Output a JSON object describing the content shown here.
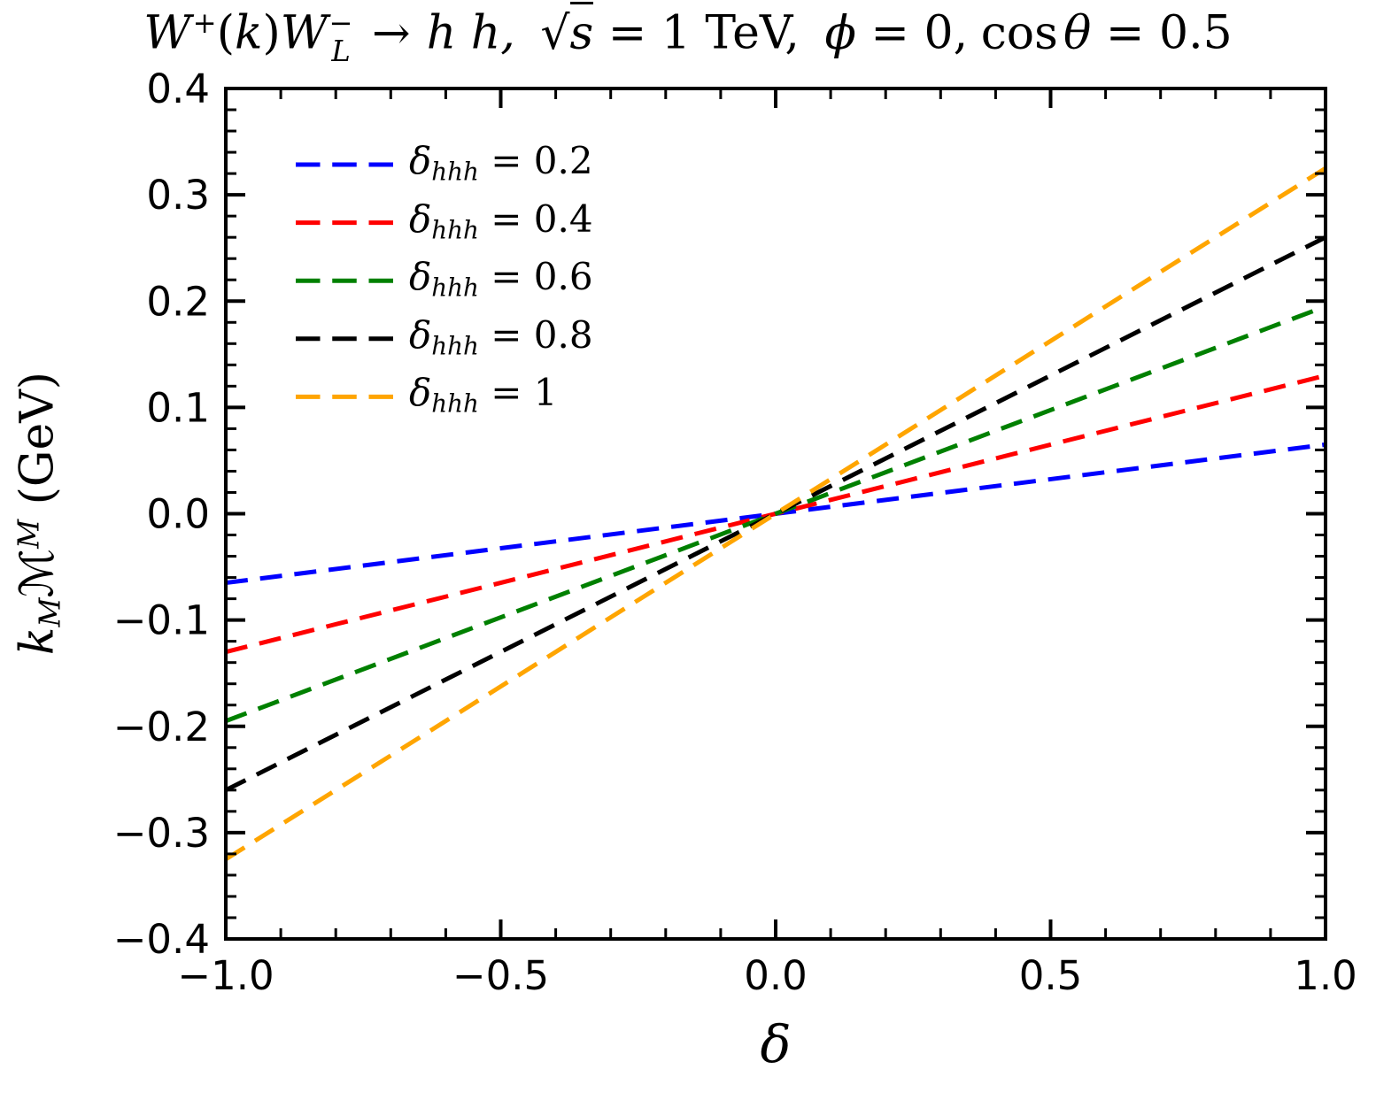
{
  "title_parts": {
    "w1": "W",
    "w1_sup": "+",
    "lp": "(",
    "k": "k",
    "rp": ")",
    "w2": "W",
    "w2_sup": "−",
    "w2_sub": "L",
    "arrow": "→",
    "hh": "h h,",
    "radical": "√",
    "s": "s",
    "eq_tev": " = 1 TeV,",
    "phi": "ϕ",
    "eq_zero": " = 0,",
    "cos": "cos",
    "theta": "θ",
    "eq_end": " = 0.5"
  },
  "ylabel_parts": {
    "k": "k",
    "k_sub": "M",
    "m": "ℳ",
    "m_sup": "M",
    "unit": " (GeV)"
  },
  "xlabel": "δ",
  "chart_data": {
    "type": "line",
    "title_plain": "W+(k)W−L → h h, √s = 1 TeV, ϕ = 0, cos θ = 0.5",
    "xlabel": "δ",
    "ylabel": "kM ℳM (GeV)",
    "xlim": [
      -1.0,
      1.0
    ],
    "ylim": [
      -0.4,
      0.4
    ],
    "x_major_ticks": [
      -1.0,
      -0.5,
      0.0,
      0.5,
      1.0
    ],
    "x_tick_labels": [
      "−1.0",
      "−0.5",
      "0.0",
      "0.5",
      "1.0"
    ],
    "x_minor_step": 0.1,
    "y_major_ticks": [
      0.4,
      0.3,
      0.2,
      0.1,
      0.0,
      -0.1,
      -0.2,
      -0.3,
      -0.4
    ],
    "y_tick_labels": [
      "0.4",
      "0.3",
      "0.2",
      "0.1",
      "0.0",
      "−0.1",
      "−0.2",
      "−0.3",
      "−0.4"
    ],
    "y_minor_step": 0.02,
    "grid": false,
    "legend_position": "upper-left",
    "legend": {
      "symbol": "δ",
      "subscript": "hhh",
      "equals": "=",
      "values": [
        "0.2",
        "0.4",
        "0.6",
        "0.8",
        "1"
      ]
    },
    "series": [
      {
        "name": "delta_hhh_0.2",
        "delta_hhh": 0.2,
        "color": "#0000ff",
        "linestyle": "dashed",
        "x": [
          -1.0,
          1.0
        ],
        "y": [
          -0.065,
          0.065
        ]
      },
      {
        "name": "delta_hhh_0.4",
        "delta_hhh": 0.4,
        "color": "#ff0000",
        "linestyle": "dashed",
        "x": [
          -1.0,
          1.0
        ],
        "y": [
          -0.13,
          0.13
        ]
      },
      {
        "name": "delta_hhh_0.6",
        "delta_hhh": 0.6,
        "color": "#008000",
        "linestyle": "dashed",
        "x": [
          -1.0,
          1.0
        ],
        "y": [
          -0.195,
          0.195
        ]
      },
      {
        "name": "delta_hhh_0.8",
        "delta_hhh": 0.8,
        "color": "#000000",
        "linestyle": "dashed",
        "x": [
          -1.0,
          1.0
        ],
        "y": [
          -0.26,
          0.26
        ]
      },
      {
        "name": "delta_hhh_1",
        "delta_hhh": 1,
        "color": "#ffa500",
        "linestyle": "dashed",
        "x": [
          -1.0,
          1.0
        ],
        "y": [
          -0.325,
          0.325
        ]
      }
    ]
  }
}
